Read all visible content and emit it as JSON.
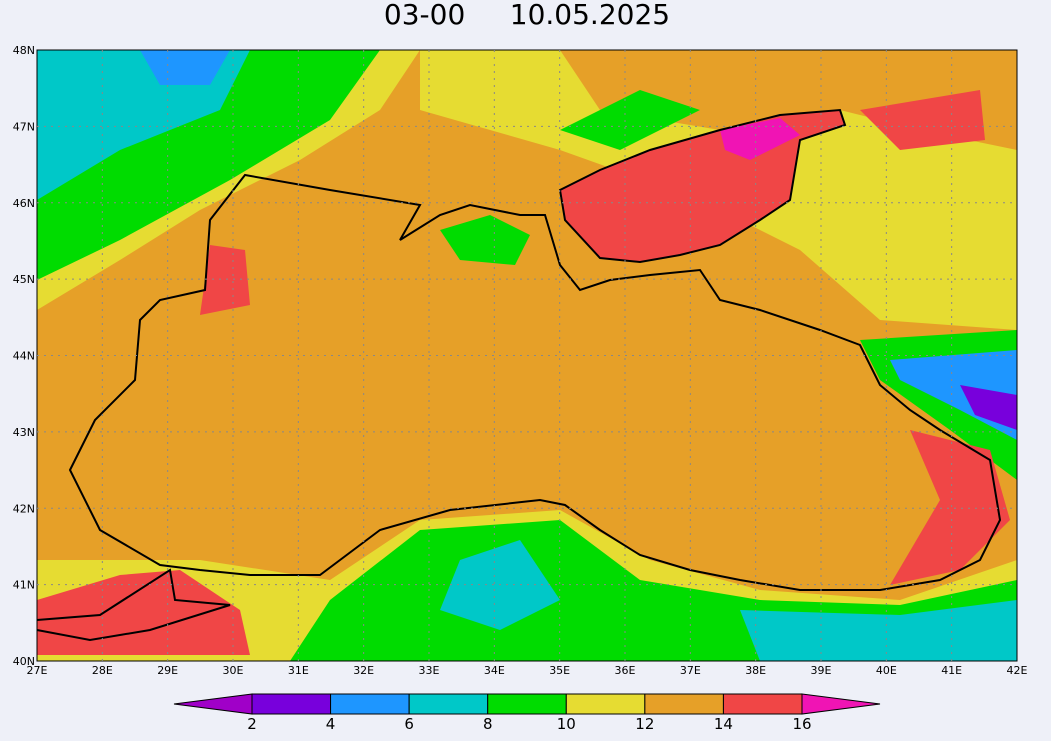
{
  "title": "03-00     10.05.2025",
  "lat_labels": [
    "40N",
    "41N",
    "42N",
    "43N",
    "44N",
    "45N",
    "46N",
    "47N",
    "48N"
  ],
  "lon_labels": [
    "27E",
    "28E",
    "29E",
    "30E",
    "31E",
    "32E",
    "33E",
    "34E",
    "35E",
    "36E",
    "37E",
    "38E",
    "39E",
    "40E",
    "41E",
    "42E"
  ],
  "colorbar": {
    "levels": [
      2,
      4,
      6,
      8,
      10,
      12,
      14,
      16
    ],
    "colors": [
      "#a000c8",
      "#7800dc",
      "#1e96ff",
      "#00c8c8",
      "#00dc00",
      "#e6dc32",
      "#e6a028",
      "#f04646",
      "#f014b4"
    ]
  }
}
